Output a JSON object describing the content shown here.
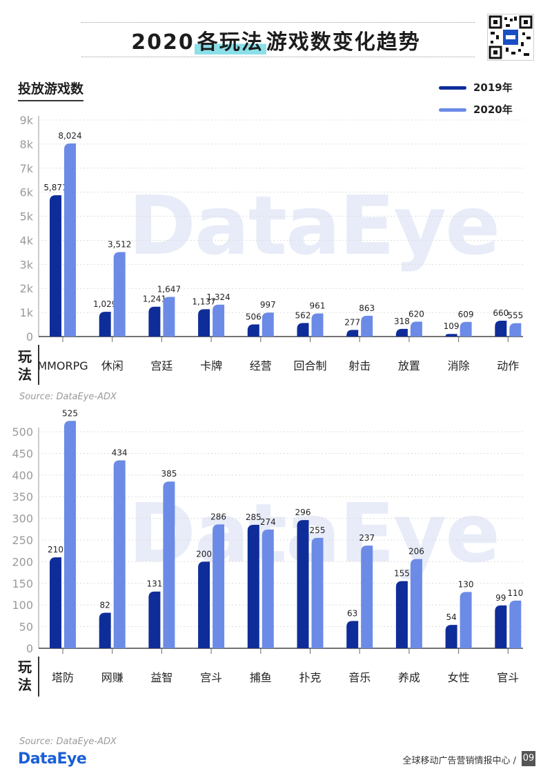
{
  "page": {
    "title_plain": "2020",
    "title_highlight": "各玩法",
    "title_rest": "游戏数变化趋势",
    "section_label": "投放游戏数",
    "category_axis_label": "玩法",
    "watermark": "DataEye",
    "footer_logo": "DataEye",
    "footer_text": "全球移动广告营销情报中心 /",
    "page_number": "09"
  },
  "legend": [
    {
      "label": "2019年",
      "color": "#0f2d99"
    },
    {
      "label": "2020年",
      "color": "#6b8be6"
    }
  ],
  "chart_data": [
    {
      "type": "bar",
      "categories": [
        "MMORPG",
        "休闲",
        "宫廷",
        "卡牌",
        "经营",
        "回合制",
        "射击",
        "放置",
        "消除",
        "动作"
      ],
      "series": [
        {
          "name": "2019年",
          "values": [
            5871,
            1029,
            1241,
            1137,
            506,
            562,
            277,
            318,
            109,
            660
          ],
          "labels": [
            "5,871",
            "1,029",
            "1,241",
            "1,137",
            "506",
            "562",
            "277",
            "318",
            "109",
            "660"
          ]
        },
        {
          "name": "2020年",
          "values": [
            8024,
            3512,
            1647,
            1324,
            997,
            961,
            863,
            620,
            609,
            555
          ],
          "labels": [
            "8,024",
            "3,512",
            "1,647",
            "1,324",
            "997",
            "961",
            "863",
            "620",
            "609",
            "555"
          ]
        }
      ],
      "ylim": [
        0,
        9000
      ],
      "yticks": [
        0,
        1000,
        2000,
        3000,
        4000,
        5000,
        6000,
        7000,
        8000,
        9000
      ],
      "ytick_labels": [
        "0",
        "1k",
        "2k",
        "3k",
        "4k",
        "5k",
        "6k",
        "7k",
        "8k",
        "9k"
      ],
      "source": "Source: DataEye-ADX"
    },
    {
      "type": "bar",
      "categories": [
        "塔防",
        "网赚",
        "益智",
        "宫斗",
        "捕鱼",
        "扑克",
        "音乐",
        "养成",
        "女性",
        "官斗"
      ],
      "series": [
        {
          "name": "2019年",
          "values": [
            210,
            82,
            131,
            200,
            285,
            296,
            63,
            155,
            54,
            99
          ],
          "labels": [
            "210",
            "82",
            "131",
            "200",
            "285",
            "296",
            "63",
            "155",
            "54",
            "99"
          ]
        },
        {
          "name": "2020年",
          "values": [
            525,
            434,
            385,
            286,
            274,
            255,
            237,
            206,
            130,
            110
          ],
          "labels": [
            "525",
            "434",
            "385",
            "286",
            "274",
            "255",
            "237",
            "206",
            "130",
            "110"
          ]
        }
      ],
      "ylim": [
        0,
        500
      ],
      "yticks": [
        0,
        50,
        100,
        150,
        200,
        250,
        300,
        350,
        400,
        450,
        500
      ],
      "ytick_labels": [
        "0",
        "50",
        "100",
        "150",
        "200",
        "250",
        "300",
        "350",
        "400",
        "450",
        "500"
      ],
      "source": "Source: DataEye-ADX"
    }
  ]
}
